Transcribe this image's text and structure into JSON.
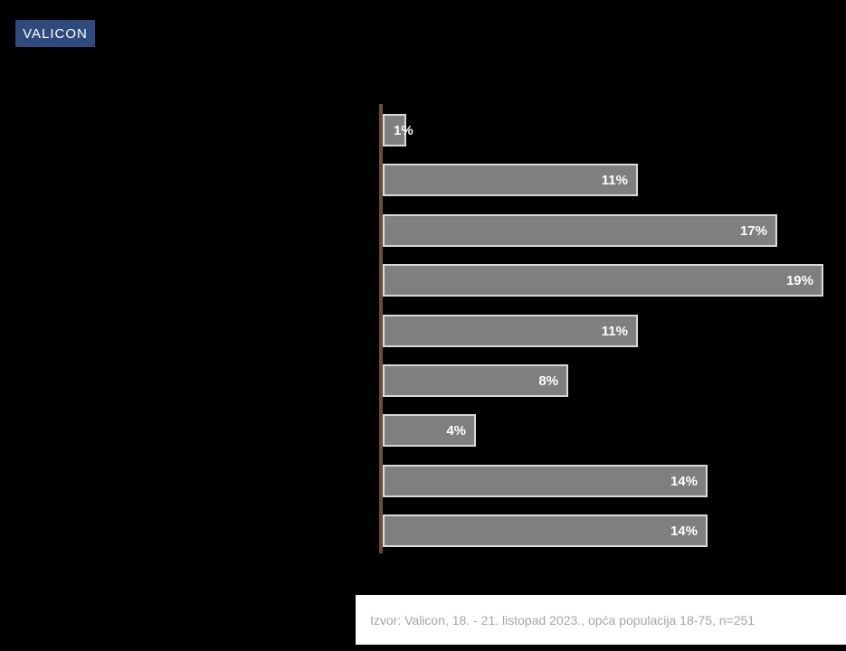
{
  "background_color": "#000000",
  "logo": {
    "text": "VALICON",
    "bg_color": "#2f4a7c",
    "text_color": "#ffffff"
  },
  "chart_data": {
    "type": "bar",
    "orientation": "horizontal",
    "values": [
      1,
      11,
      17,
      19,
      11,
      8,
      4,
      14,
      14
    ],
    "labels": [
      "1%",
      "11%",
      "17%",
      "19%",
      "11%",
      "8%",
      "4%",
      "14%",
      "14%"
    ],
    "title": "",
    "xlabel": "",
    "ylabel": "",
    "xlim": [
      0,
      19
    ],
    "grid": false,
    "legend": false,
    "bar_color": "#7f7f7f",
    "bar_border_color": "#d9d9d9",
    "value_label_color": "#ffffff",
    "axis_line_color": "#6a4e33"
  },
  "footer": {
    "text": "Izvor: Valicon, 18. - 21. listopad 2023., opća populacija 18-75, n=251",
    "bg_color": "#ffffff",
    "text_color": "#a6a6a6"
  }
}
